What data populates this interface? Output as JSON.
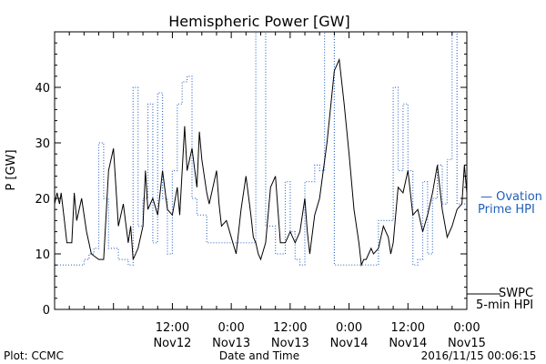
{
  "chart_data": {
    "type": "line",
    "title": "Hemispheric Power [GW]",
    "ylabel": "P [GW]",
    "xlabel": "Date and Time",
    "ylim": [
      0,
      50
    ],
    "yticks": [
      0,
      10,
      20,
      30,
      40
    ],
    "xlim": [
      "2016-11-11T12:00",
      "2016-11-15T00:00"
    ],
    "xticks": [
      {
        "time": "2016-11-12T12:00",
        "line1": "12:00",
        "line2": "Nov12"
      },
      {
        "time": "2016-11-13T00:00",
        "line1": "0:00",
        "line2": "Nov13"
      },
      {
        "time": "2016-11-13T12:00",
        "line1": "12:00",
        "line2": "Nov13"
      },
      {
        "time": "2016-11-14T00:00",
        "line1": "0:00",
        "line2": "Nov14"
      },
      {
        "time": "2016-11-14T12:00",
        "line1": "12:00",
        "line2": "Nov14"
      },
      {
        "time": "2016-11-15T00:00",
        "line1": "0:00",
        "line2": "Nov15"
      }
    ],
    "grid": false,
    "legend_placement": "right",
    "series": [
      {
        "name": "Ovation Prime HPI",
        "label_line1": "— Ovation",
        "label_line2": "Prime HPI",
        "color": "#3a6fc8",
        "style": "dotted",
        "step": true,
        "points": [
          [
            "2016-11-11T12:00",
            8
          ],
          [
            "2016-11-11T17:00",
            8
          ],
          [
            "2016-11-11T18:00",
            9
          ],
          [
            "2016-11-11T19:00",
            10
          ],
          [
            "2016-11-11T20:00",
            11
          ],
          [
            "2016-11-11T21:00",
            30
          ],
          [
            "2016-11-11T22:00",
            20
          ],
          [
            "2016-11-11T23:00",
            11
          ],
          [
            "2016-11-12T01:00",
            9
          ],
          [
            "2016-11-12T03:00",
            8
          ],
          [
            "2016-11-12T04:00",
            40
          ],
          [
            "2016-11-12T05:00",
            15
          ],
          [
            "2016-11-12T06:00",
            20
          ],
          [
            "2016-11-12T07:00",
            37
          ],
          [
            "2016-11-12T08:00",
            12
          ],
          [
            "2016-11-12T09:00",
            39
          ],
          [
            "2016-11-12T10:00",
            20
          ],
          [
            "2016-11-12T11:00",
            10
          ],
          [
            "2016-11-12T12:00",
            25
          ],
          [
            "2016-11-12T13:00",
            37
          ],
          [
            "2016-11-12T14:00",
            41
          ],
          [
            "2016-11-12T15:00",
            42
          ],
          [
            "2016-11-12T16:00",
            20
          ],
          [
            "2016-11-12T17:00",
            17
          ],
          [
            "2016-11-12T19:00",
            12
          ],
          [
            "2016-11-13T02:00",
            12
          ],
          [
            "2016-11-13T05:00",
            50
          ],
          [
            "2016-11-13T07:00",
            15
          ],
          [
            "2016-11-13T09:00",
            10
          ],
          [
            "2016-11-13T11:00",
            23
          ],
          [
            "2016-11-13T12:00",
            14
          ],
          [
            "2016-11-13T13:00",
            9
          ],
          [
            "2016-11-13T14:00",
            8
          ],
          [
            "2016-11-13T15:00",
            23
          ],
          [
            "2016-11-13T17:00",
            26
          ],
          [
            "2016-11-13T18:00",
            25
          ],
          [
            "2016-11-13T19:00",
            50
          ],
          [
            "2016-11-13T21:00",
            8
          ],
          [
            "2016-11-14T06:00",
            16
          ],
          [
            "2016-11-14T09:00",
            40
          ],
          [
            "2016-11-14T10:00",
            25
          ],
          [
            "2016-11-14T11:00",
            37
          ],
          [
            "2016-11-14T12:00",
            25
          ],
          [
            "2016-11-14T13:00",
            8
          ],
          [
            "2016-11-14T14:00",
            9
          ],
          [
            "2016-11-14T15:00",
            23
          ],
          [
            "2016-11-14T16:00",
            10
          ],
          [
            "2016-11-14T17:00",
            20
          ],
          [
            "2016-11-14T18:00",
            26
          ],
          [
            "2016-11-14T19:00",
            19
          ],
          [
            "2016-11-14T20:00",
            27
          ],
          [
            "2016-11-14T21:00",
            50
          ],
          [
            "2016-11-14T22:00",
            19
          ],
          [
            "2016-11-15T00:00",
            19
          ]
        ]
      },
      {
        "name": "SWPC 5-min HPI",
        "label_line1": "SWPC",
        "label_line2": "5-min HPI",
        "color": "#000000",
        "style": "solid",
        "step": false,
        "points": [
          [
            "2016-11-11T12:00",
            19
          ],
          [
            "2016-11-11T12:30",
            21
          ],
          [
            "2016-11-11T13:00",
            19
          ],
          [
            "2016-11-11T13:20",
            21
          ],
          [
            "2016-11-11T14:00",
            16
          ],
          [
            "2016-11-11T14:30",
            12
          ],
          [
            "2016-11-11T15:30",
            12
          ],
          [
            "2016-11-11T16:00",
            21
          ],
          [
            "2016-11-11T16:30",
            16
          ],
          [
            "2016-11-11T17:30",
            20
          ],
          [
            "2016-11-11T18:30",
            14
          ],
          [
            "2016-11-11T19:30",
            10
          ],
          [
            "2016-11-11T21:00",
            9
          ],
          [
            "2016-11-11T22:00",
            9
          ],
          [
            "2016-11-11T23:00",
            25
          ],
          [
            "2016-11-12T00:00",
            29
          ],
          [
            "2016-11-12T01:00",
            15
          ],
          [
            "2016-11-12T02:00",
            19
          ],
          [
            "2016-11-12T03:00",
            12
          ],
          [
            "2016-11-12T03:30",
            15
          ],
          [
            "2016-11-12T04:00",
            9
          ],
          [
            "2016-11-12T05:00",
            11
          ],
          [
            "2016-11-12T06:00",
            15
          ],
          [
            "2016-11-12T06:30",
            25
          ],
          [
            "2016-11-12T07:00",
            18
          ],
          [
            "2016-11-12T08:00",
            20
          ],
          [
            "2016-11-12T09:00",
            17
          ],
          [
            "2016-11-12T10:00",
            25
          ],
          [
            "2016-11-12T11:00",
            18
          ],
          [
            "2016-11-12T12:00",
            17
          ],
          [
            "2016-11-12T13:00",
            22
          ],
          [
            "2016-11-12T13:30",
            17
          ],
          [
            "2016-11-12T14:30",
            33
          ],
          [
            "2016-11-12T15:00",
            25
          ],
          [
            "2016-11-12T16:00",
            29
          ],
          [
            "2016-11-12T17:00",
            22
          ],
          [
            "2016-11-12T17:30",
            32
          ],
          [
            "2016-11-12T18:00",
            27
          ],
          [
            "2016-11-12T19:00",
            21
          ],
          [
            "2016-11-12T19:30",
            19
          ],
          [
            "2016-11-12T21:00",
            25
          ],
          [
            "2016-11-12T21:30",
            19
          ],
          [
            "2016-11-12T22:00",
            15
          ],
          [
            "2016-11-12T23:00",
            16
          ],
          [
            "2016-11-13T00:00",
            13
          ],
          [
            "2016-11-13T01:00",
            10
          ],
          [
            "2016-11-13T02:00",
            18
          ],
          [
            "2016-11-13T03:00",
            24
          ],
          [
            "2016-11-13T04:00",
            17
          ],
          [
            "2016-11-13T04:30",
            13
          ],
          [
            "2016-11-13T05:00",
            12
          ],
          [
            "2016-11-13T05:30",
            10
          ],
          [
            "2016-11-13T06:00",
            9
          ],
          [
            "2016-11-13T07:00",
            12
          ],
          [
            "2016-11-13T07:30",
            17
          ],
          [
            "2016-11-13T08:00",
            22
          ],
          [
            "2016-11-13T09:00",
            24
          ],
          [
            "2016-11-13T10:00",
            12
          ],
          [
            "2016-11-13T11:00",
            12
          ],
          [
            "2016-11-13T12:00",
            14
          ],
          [
            "2016-11-13T13:00",
            12
          ],
          [
            "2016-11-13T14:00",
            14
          ],
          [
            "2016-11-13T15:00",
            20
          ],
          [
            "2016-11-13T15:30",
            14
          ],
          [
            "2016-11-13T16:00",
            10
          ],
          [
            "2016-11-13T17:00",
            17
          ],
          [
            "2016-11-13T18:00",
            20
          ],
          [
            "2016-11-13T19:30",
            30
          ],
          [
            "2016-11-13T21:00",
            43
          ],
          [
            "2016-11-13T22:00",
            45
          ],
          [
            "2016-11-13T23:00",
            37
          ],
          [
            "2016-11-14T00:00",
            28
          ],
          [
            "2016-11-14T01:00",
            18
          ],
          [
            "2016-11-14T02:00",
            12
          ],
          [
            "2016-11-14T02:30",
            8
          ],
          [
            "2016-11-14T03:00",
            9
          ],
          [
            "2016-11-14T03:30",
            9
          ],
          [
            "2016-11-14T04:30",
            11
          ],
          [
            "2016-11-14T05:00",
            10
          ],
          [
            "2016-11-14T06:00",
            11
          ],
          [
            "2016-11-14T06:30",
            13
          ],
          [
            "2016-11-14T07:00",
            15
          ],
          [
            "2016-11-14T08:00",
            13
          ],
          [
            "2016-11-14T08:30",
            10
          ],
          [
            "2016-11-14T09:00",
            12
          ],
          [
            "2016-11-14T10:00",
            22
          ],
          [
            "2016-11-14T11:00",
            21
          ],
          [
            "2016-11-14T12:00",
            25
          ],
          [
            "2016-11-14T13:00",
            17
          ],
          [
            "2016-11-14T14:00",
            18
          ],
          [
            "2016-11-14T15:00",
            14
          ],
          [
            "2016-11-14T16:00",
            17
          ],
          [
            "2016-11-14T17:00",
            21
          ],
          [
            "2016-11-14T18:00",
            26
          ],
          [
            "2016-11-14T19:00",
            18
          ],
          [
            "2016-11-14T20:00",
            13
          ],
          [
            "2016-11-14T21:00",
            15
          ],
          [
            "2016-11-14T22:00",
            18
          ],
          [
            "2016-11-14T23:00",
            19
          ],
          [
            "2016-11-14T23:30",
            26
          ],
          [
            "2016-11-15T00:00",
            21
          ]
        ]
      }
    ]
  },
  "footer": {
    "left": "Plot: CCMC",
    "center": "Date and Time",
    "right": "2016/11/15 00:06:15"
  },
  "colors": {
    "axis": "#000000",
    "ovation": "#3a6fc8",
    "ovation_text": "#1f5fb8",
    "swpc": "#000000"
  }
}
